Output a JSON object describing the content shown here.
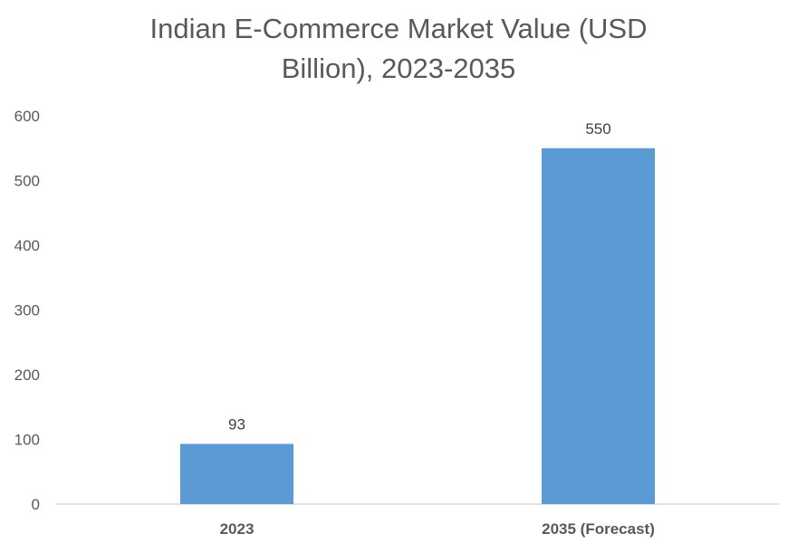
{
  "chart_data": {
    "type": "bar",
    "title_line1": "Indian E-Commerce Market Value (USD",
    "title_line2": "Billion), 2023-2035",
    "categories": [
      "2023",
      "2035 (Forecast)"
    ],
    "values": [
      93,
      550
    ],
    "data_labels": [
      "93",
      "550"
    ],
    "ylim": [
      0,
      600
    ],
    "yticks": [
      0,
      100,
      200,
      300,
      400,
      500,
      600
    ],
    "grid": false,
    "legend": "none",
    "bar_color": "#5B9BD5",
    "axis_color": "#D9D9D9"
  }
}
